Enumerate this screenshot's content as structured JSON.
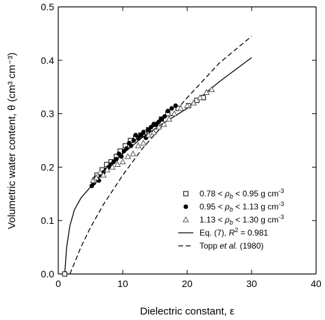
{
  "chart_data": {
    "type": "scatter",
    "xlabel": "Dielectric constant, ε",
    "ylabel": "Volumetric water content, θ (cm³ cm⁻³)",
    "xlim": [
      0,
      40
    ],
    "ylim": [
      0,
      0.5
    ],
    "xticks": [
      0,
      10,
      20,
      30,
      40
    ],
    "yticks": [
      0.0,
      0.1,
      0.2,
      0.3,
      0.4,
      0.5
    ],
    "xtick_labels": [
      "0",
      "10",
      "20",
      "30",
      "40"
    ],
    "ytick_labels": [
      "0.0",
      "0.1",
      "0.2",
      "0.3",
      "0.4",
      "0.5"
    ],
    "legend_position": "lower-right",
    "series": [
      {
        "name": "0.78 < ρb < 0.95 g cm-3",
        "marker": "open-square",
        "points": [
          [
            1.0,
            0.0
          ],
          [
            5.6,
            0.175
          ],
          [
            6.0,
            0.185
          ],
          [
            6.8,
            0.195
          ],
          [
            7.5,
            0.205
          ],
          [
            8.2,
            0.21
          ],
          [
            9.0,
            0.22
          ],
          [
            9.6,
            0.23
          ],
          [
            10.4,
            0.24
          ],
          [
            11.2,
            0.25
          ],
          [
            12.0,
            0.255
          ],
          [
            12.8,
            0.26
          ],
          [
            13.4,
            0.265
          ],
          [
            14.0,
            0.27
          ],
          [
            15.0,
            0.28
          ],
          [
            16.0,
            0.29
          ],
          [
            17.0,
            0.3
          ],
          [
            18.6,
            0.31
          ],
          [
            20.2,
            0.315
          ],
          [
            21.5,
            0.325
          ],
          [
            22.5,
            0.33
          ]
        ]
      },
      {
        "name": "0.95 < ρb < 1.13 g cm-3",
        "marker": "filled-circle",
        "points": [
          [
            5.2,
            0.165
          ],
          [
            5.5,
            0.17
          ],
          [
            5.8,
            0.18
          ],
          [
            6.3,
            0.175
          ],
          [
            6.6,
            0.185
          ],
          [
            7.0,
            0.19
          ],
          [
            7.4,
            0.195
          ],
          [
            7.8,
            0.2
          ],
          [
            8.2,
            0.205
          ],
          [
            8.6,
            0.21
          ],
          [
            9.0,
            0.215
          ],
          [
            9.4,
            0.225
          ],
          [
            9.8,
            0.22
          ],
          [
            10.2,
            0.23
          ],
          [
            10.6,
            0.235
          ],
          [
            11.0,
            0.245
          ],
          [
            11.3,
            0.24
          ],
          [
            11.7,
            0.25
          ],
          [
            12.0,
            0.26
          ],
          [
            12.4,
            0.255
          ],
          [
            12.8,
            0.26
          ],
          [
            13.2,
            0.265
          ],
          [
            13.6,
            0.255
          ],
          [
            14.0,
            0.27
          ],
          [
            14.4,
            0.275
          ],
          [
            14.8,
            0.28
          ],
          [
            15.2,
            0.28
          ],
          [
            15.6,
            0.285
          ],
          [
            16.0,
            0.29
          ],
          [
            16.5,
            0.295
          ],
          [
            17.0,
            0.305
          ],
          [
            17.6,
            0.31
          ],
          [
            18.2,
            0.315
          ]
        ]
      },
      {
        "name": "1.13 < ρb < 1.30 g cm-3",
        "marker": "open-triangle",
        "points": [
          [
            5.4,
            0.175
          ],
          [
            5.9,
            0.18
          ],
          [
            6.5,
            0.19
          ],
          [
            7.0,
            0.185
          ],
          [
            7.6,
            0.195
          ],
          [
            8.4,
            0.2
          ],
          [
            9.2,
            0.205
          ],
          [
            10.0,
            0.21
          ],
          [
            10.8,
            0.22
          ],
          [
            11.6,
            0.225
          ],
          [
            12.4,
            0.24
          ],
          [
            13.2,
            0.245
          ],
          [
            14.0,
            0.26
          ],
          [
            14.8,
            0.265
          ],
          [
            15.6,
            0.275
          ],
          [
            16.4,
            0.28
          ],
          [
            17.2,
            0.29
          ],
          [
            18.0,
            0.3
          ],
          [
            19.0,
            0.31
          ],
          [
            20.0,
            0.315
          ],
          [
            21.0,
            0.32
          ],
          [
            22.0,
            0.33
          ],
          [
            23.0,
            0.34
          ],
          [
            23.8,
            0.345
          ]
        ]
      }
    ],
    "curves": [
      {
        "name": "Eq. (7), R² = 0.981",
        "style": "solid",
        "points": [
          [
            1.0,
            0.0
          ],
          [
            1.3,
            0.05
          ],
          [
            1.8,
            0.09
          ],
          [
            2.5,
            0.12
          ],
          [
            3.5,
            0.142
          ],
          [
            5.0,
            0.163
          ],
          [
            7.0,
            0.19
          ],
          [
            10.0,
            0.225
          ],
          [
            13.0,
            0.255
          ],
          [
            16.0,
            0.28
          ],
          [
            20.0,
            0.31
          ],
          [
            25.0,
            0.36
          ],
          [
            30.0,
            0.405
          ]
        ]
      },
      {
        "name": "Topp et al. (1980)",
        "style": "dashed",
        "points": [
          [
            1.8,
            0.0
          ],
          [
            2.5,
            0.02
          ],
          [
            3.5,
            0.05
          ],
          [
            5.0,
            0.087
          ],
          [
            7.0,
            0.13
          ],
          [
            10.0,
            0.185
          ],
          [
            13.0,
            0.234
          ],
          [
            16.0,
            0.275
          ],
          [
            20.0,
            0.33
          ],
          [
            25.0,
            0.395
          ],
          [
            30.0,
            0.445
          ]
        ]
      }
    ],
    "legend": [
      {
        "marker": "open-square",
        "label_parts": [
          "0.78 < ",
          "ρ",
          "b",
          " < 0.95 g cm",
          "-3"
        ]
      },
      {
        "marker": "filled-circle",
        "label_parts": [
          "0.95 < ",
          "ρ",
          "b",
          " < 1.13 g cm",
          "-3"
        ]
      },
      {
        "marker": "open-triangle",
        "label_parts": [
          "1.13 < ",
          "ρ",
          "b",
          " < 1.30 g cm",
          "-3"
        ]
      },
      {
        "marker": "solid-line",
        "label_parts": [
          "Eq. (7), ",
          "R",
          "2",
          " = 0.981"
        ]
      },
      {
        "marker": "dashed-line",
        "label_parts": [
          "Topp ",
          "et al.",
          " (1980)"
        ]
      }
    ]
  }
}
